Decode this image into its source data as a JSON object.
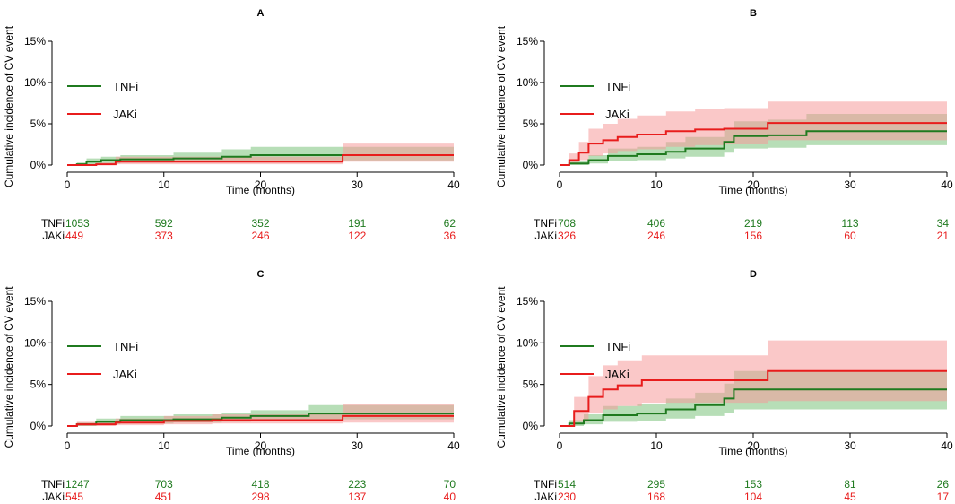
{
  "chart_data": [
    {
      "type": "line",
      "panel_label": "A",
      "xlabel": "Time (months)",
      "ylabel": "Cumulative incidence of CV event",
      "xlim": [
        0,
        40
      ],
      "ylim": [
        0,
        15
      ],
      "x_ticks": [
        0,
        10,
        20,
        30,
        40
      ],
      "y_ticks": [
        0,
        5,
        10,
        15
      ],
      "y_tick_labels": [
        "0%",
        "5%",
        "10%",
        "15%"
      ],
      "legend_position": "top-left",
      "series": [
        {
          "name": "TNFi",
          "color": "#1f7a1f",
          "band_color": "#7cc27c",
          "x": [
            0,
            1,
            2,
            3.5,
            5.5,
            11,
            16,
            19,
            28.5,
            40
          ],
          "y": [
            0,
            0.1,
            0.4,
            0.6,
            0.7,
            0.8,
            1.0,
            1.2,
            1.2,
            1.2
          ],
          "lower": [
            0,
            0,
            0.1,
            0.2,
            0.3,
            0.35,
            0.45,
            0.55,
            0.55,
            0.55
          ],
          "upper": [
            0,
            0.3,
            0.8,
            1.0,
            1.2,
            1.5,
            1.9,
            2.2,
            2.2,
            2.2
          ]
        },
        {
          "name": "JAKi",
          "color": "#e81c1c",
          "band_color": "#f59a9a",
          "x": [
            0,
            3,
            5,
            28.5,
            40
          ],
          "y": [
            0,
            0.1,
            0.4,
            1.2,
            1.2
          ],
          "lower": [
            0,
            0,
            0.1,
            0.4,
            0.4
          ],
          "upper": [
            0,
            0.3,
            1.0,
            2.6,
            2.6
          ]
        }
      ],
      "risk_table": {
        "times": [
          0,
          10,
          20,
          30,
          40
        ],
        "rows": [
          {
            "label": "TNFi",
            "color": "#1f7a1f",
            "counts": [
              "1053",
              "592",
              "352",
              "191",
              "62"
            ]
          },
          {
            "label": "JAKi",
            "color": "#e81c1c",
            "counts": [
              "449",
              "373",
              "246",
              "122",
              "36"
            ]
          }
        ]
      }
    },
    {
      "type": "line",
      "panel_label": "B",
      "xlabel": "Time (months)",
      "ylabel": "Cumulative incidence of CV event",
      "xlim": [
        0,
        40
      ],
      "ylim": [
        0,
        15
      ],
      "x_ticks": [
        0,
        10,
        20,
        30,
        40
      ],
      "y_ticks": [
        0,
        5,
        10,
        15
      ],
      "y_tick_labels": [
        "0%",
        "5%",
        "10%",
        "15%"
      ],
      "legend_position": "top-left",
      "series": [
        {
          "name": "TNFi",
          "color": "#1f7a1f",
          "band_color": "#7cc27c",
          "x": [
            0,
            1,
            3,
            5,
            8,
            11,
            13,
            17,
            18,
            21.5,
            25.5,
            40
          ],
          "y": [
            0,
            0.2,
            0.6,
            1.1,
            1.3,
            1.6,
            2.0,
            2.8,
            3.5,
            3.6,
            4.1,
            4.1
          ],
          "lower": [
            0,
            0,
            0.2,
            0.5,
            0.6,
            0.8,
            1.0,
            1.5,
            2.0,
            2.1,
            2.4,
            2.4
          ],
          "upper": [
            0,
            0.5,
            1.2,
            2.0,
            2.2,
            2.8,
            3.4,
            4.4,
            5.3,
            5.5,
            6.2,
            6.2
          ]
        },
        {
          "name": "JAKi",
          "color": "#e81c1c",
          "band_color": "#f59a9a",
          "x": [
            0,
            1,
            2,
            3,
            4.5,
            6,
            8,
            11,
            14,
            17,
            21.5,
            40
          ],
          "y": [
            0,
            0.6,
            1.5,
            2.6,
            3.0,
            3.4,
            3.7,
            4.1,
            4.3,
            4.4,
            5.1,
            5.1
          ],
          "lower": [
            0,
            0.1,
            0.6,
            1.1,
            1.4,
            1.7,
            1.9,
            2.2,
            2.4,
            2.5,
            3.0,
            3.0
          ],
          "upper": [
            0,
            1.4,
            2.8,
            4.4,
            5.0,
            5.6,
            6.0,
            6.5,
            6.8,
            6.9,
            7.7,
            7.7
          ]
        }
      ],
      "risk_table": {
        "times": [
          0,
          10,
          20,
          30,
          40
        ],
        "rows": [
          {
            "label": "TNFi",
            "color": "#1f7a1f",
            "counts": [
              "708",
              "406",
              "219",
              "113",
              "34"
            ]
          },
          {
            "label": "JAKi",
            "color": "#e81c1c",
            "counts": [
              "326",
              "246",
              "156",
              "60",
              "21"
            ]
          }
        ]
      }
    },
    {
      "type": "line",
      "panel_label": "C",
      "xlabel": "Time (months)",
      "ylabel": "Cumulative incidence of CV event",
      "xlim": [
        0,
        40
      ],
      "ylim": [
        0,
        15
      ],
      "x_ticks": [
        0,
        10,
        20,
        30,
        40
      ],
      "y_ticks": [
        0,
        5,
        10,
        15
      ],
      "y_tick_labels": [
        "0%",
        "5%",
        "10%",
        "15%"
      ],
      "legend_position": "top-left",
      "series": [
        {
          "name": "TNFi",
          "color": "#1f7a1f",
          "band_color": "#7cc27c",
          "x": [
            0,
            1,
            3,
            5.5,
            11,
            16,
            19,
            25,
            40
          ],
          "y": [
            0,
            0.2,
            0.5,
            0.7,
            0.8,
            1.0,
            1.2,
            1.5,
            1.5
          ],
          "lower": [
            0,
            0,
            0.2,
            0.3,
            0.4,
            0.5,
            0.6,
            0.8,
            0.8
          ],
          "upper": [
            0,
            0.4,
            0.9,
            1.2,
            1.4,
            1.6,
            1.9,
            2.5,
            2.5
          ]
        },
        {
          "name": "JAKi",
          "color": "#e81c1c",
          "band_color": "#f59a9a",
          "x": [
            0,
            1,
            5,
            10,
            15,
            28.5,
            40
          ],
          "y": [
            0,
            0.2,
            0.4,
            0.6,
            0.7,
            1.2,
            1.2
          ],
          "lower": [
            0,
            0,
            0.1,
            0.2,
            0.3,
            0.4,
            0.4
          ],
          "upper": [
            0,
            0.5,
            0.9,
            1.2,
            1.4,
            2.7,
            2.7
          ]
        }
      ],
      "risk_table": {
        "times": [
          0,
          10,
          20,
          30,
          40
        ],
        "rows": [
          {
            "label": "TNFi",
            "color": "#1f7a1f",
            "counts": [
              "1247",
              "703",
              "418",
              "223",
              "70"
            ]
          },
          {
            "label": "JAKi",
            "color": "#e81c1c",
            "counts": [
              "545",
              "451",
              "298",
              "137",
              "40"
            ]
          }
        ]
      }
    },
    {
      "type": "line",
      "panel_label": "D",
      "xlabel": "Time (months)",
      "ylabel": "Cumulative incidence of CV event",
      "xlim": [
        0,
        40
      ],
      "ylim": [
        0,
        15
      ],
      "x_ticks": [
        0,
        10,
        20,
        30,
        40
      ],
      "y_ticks": [
        0,
        5,
        10,
        15
      ],
      "y_tick_labels": [
        "0%",
        "5%",
        "10%",
        "15%"
      ],
      "legend_position": "top-left",
      "series": [
        {
          "name": "TNFi",
          "color": "#1f7a1f",
          "band_color": "#7cc27c",
          "x": [
            0,
            1,
            2.5,
            4.5,
            8,
            11,
            14,
            17,
            18,
            40
          ],
          "y": [
            0,
            0.3,
            0.7,
            1.3,
            1.5,
            2.0,
            2.5,
            3.3,
            4.4,
            4.4
          ],
          "lower": [
            0,
            0,
            0.2,
            0.5,
            0.6,
            0.9,
            1.2,
            1.6,
            2.0,
            2.0
          ],
          "upper": [
            0,
            0.7,
            1.4,
            2.4,
            2.6,
            3.3,
            4.0,
            5.1,
            6.6,
            6.6
          ]
        },
        {
          "name": "JAKi",
          "color": "#e81c1c",
          "band_color": "#f59a9a",
          "x": [
            0,
            1.5,
            3,
            4.5,
            6,
            8.5,
            21.5,
            40
          ],
          "y": [
            0,
            1.8,
            3.5,
            4.4,
            4.9,
            5.5,
            6.6,
            6.6
          ],
          "lower": [
            0,
            0.5,
            1.5,
            2.0,
            2.4,
            2.8,
            3.0,
            3.0
          ],
          "upper": [
            0,
            3.5,
            6.0,
            7.3,
            7.9,
            8.5,
            10.3,
            10.3
          ]
        }
      ],
      "risk_table": {
        "times": [
          0,
          10,
          20,
          30,
          40
        ],
        "rows": [
          {
            "label": "TNFi",
            "color": "#1f7a1f",
            "counts": [
              "514",
              "295",
              "153",
              "81",
              "26"
            ]
          },
          {
            "label": "JAKi",
            "color": "#e81c1c",
            "counts": [
              "230",
              "168",
              "104",
              "45",
              "17"
            ]
          }
        ]
      }
    }
  ]
}
